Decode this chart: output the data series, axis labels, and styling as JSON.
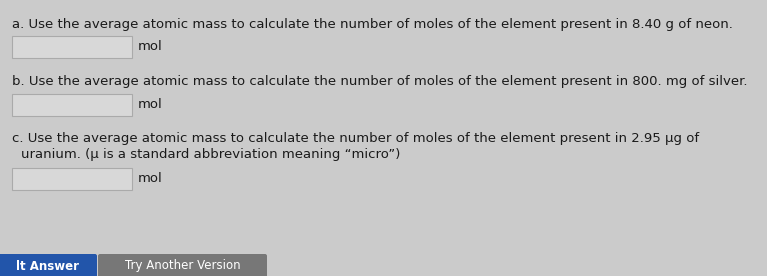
{
  "background_color": "#cbcbcb",
  "text_color": "#1a1a1a",
  "font_size": 9.5,
  "questions": [
    {
      "prefix": "a. ",
      "text": "Use the average atomic mass to calculate the number of moles of the element present in 8.40 g of neon.",
      "text_line2": null,
      "answer_label": "mol"
    },
    {
      "prefix": "b. ",
      "text": "Use the average atomic mass to calculate the number of moles of the element present in 800. mg of silver.",
      "text_line2": null,
      "answer_label": "mol"
    },
    {
      "prefix": "c. ",
      "text": "Use the average atomic mass to calculate the number of moles of the element present in 2.95 μg of",
      "text_line2": "uranium. (μ is a standard abbreviation meaning “micro”)",
      "answer_label": "mol"
    }
  ],
  "box_facecolor": "#d8d8d8",
  "box_edgecolor": "#aaaaaa",
  "button_left_color": "#2255aa",
  "button_right_color": "#777777",
  "button_left_text": "lt Answer",
  "button_right_text": "Try Another Version"
}
